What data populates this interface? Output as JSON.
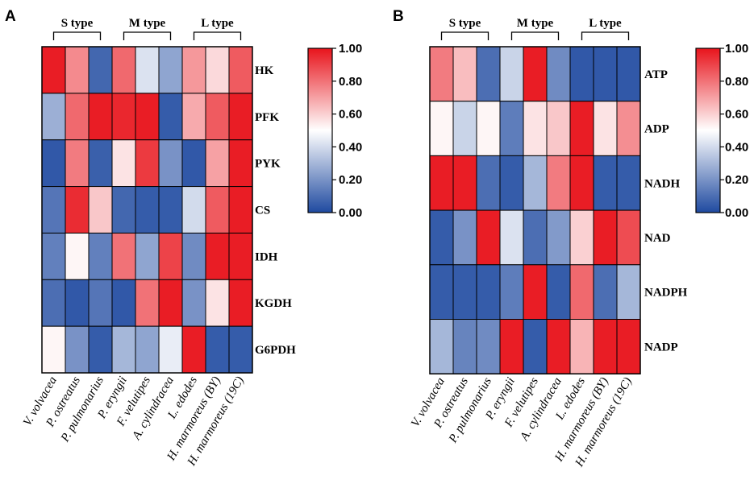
{
  "colorscale": {
    "low": "#1f4aa0",
    "mid": "#ffffff",
    "high": "#e8141c"
  },
  "chart_data": [
    {
      "type": "heatmap",
      "panel": "A",
      "groups": [
        "S type",
        "M type",
        "L type"
      ],
      "columns": [
        "V. volvacea",
        "P. ostreatus",
        "P. pulmonarius",
        "P. eryngii",
        "F. velutipes",
        "A. cylindracea",
        "L. edodes",
        "H. marmoreus (BY)",
        "H. marmoreus (19C)"
      ],
      "rows": [
        "HK",
        "PFK",
        "PYK",
        "CS",
        "IDH",
        "KGDH",
        "G6PDH"
      ],
      "values": [
        [
          0.98,
          0.75,
          0.08,
          0.82,
          0.42,
          0.25,
          0.72,
          0.58,
          0.85
        ],
        [
          0.28,
          0.82,
          0.98,
          0.96,
          0.98,
          0.05,
          0.68,
          0.85,
          0.98
        ],
        [
          0.04,
          0.78,
          0.06,
          0.56,
          0.92,
          0.2,
          0.04,
          0.7,
          0.98
        ],
        [
          0.12,
          0.95,
          0.62,
          0.08,
          0.05,
          0.05,
          0.4,
          0.85,
          0.98
        ],
        [
          0.15,
          0.52,
          0.15,
          0.8,
          0.25,
          0.9,
          0.18,
          0.98,
          0.98
        ],
        [
          0.1,
          0.04,
          0.12,
          0.04,
          0.8,
          0.98,
          0.2,
          0.56,
          0.98
        ],
        [
          0.52,
          0.2,
          0.05,
          0.3,
          0.25,
          0.45,
          0.98,
          0.05,
          0.05
        ]
      ],
      "colorbar": {
        "min": 0.0,
        "max": 1.0,
        "ticks": [
          "1.00",
          "0.80",
          "0.60",
          "0.40",
          "0.20",
          "0.00"
        ]
      }
    },
    {
      "type": "heatmap",
      "panel": "B",
      "groups": [
        "S type",
        "M type",
        "L type"
      ],
      "columns": [
        "V. volvacea",
        "P. ostreatus",
        "P. pulmonarius",
        "P. eryngii",
        "F. velutipes",
        "A. cylindracea",
        "L. edodes",
        "H. marmoreus (BY)",
        "H. marmoreus (19C)"
      ],
      "rows": [
        "ATP",
        "ADP",
        "NADH",
        "NAD",
        "NADPH",
        "NADP"
      ],
      "values": [
        [
          0.78,
          0.64,
          0.1,
          0.38,
          0.98,
          0.18,
          0.04,
          0.04,
          0.04
        ],
        [
          0.52,
          0.38,
          0.52,
          0.14,
          0.56,
          0.62,
          0.98,
          0.56,
          0.74
        ],
        [
          0.98,
          0.98,
          0.1,
          0.05,
          0.3,
          0.78,
          0.98,
          0.05,
          0.05
        ],
        [
          0.05,
          0.2,
          0.98,
          0.42,
          0.1,
          0.22,
          0.6,
          0.98,
          0.88
        ],
        [
          0.05,
          0.05,
          0.05,
          0.14,
          0.98,
          0.05,
          0.82,
          0.1,
          0.3
        ],
        [
          0.3,
          0.16,
          0.18,
          0.98,
          0.05,
          0.98,
          0.66,
          0.98,
          0.98
        ]
      ],
      "colorbar": {
        "min": 0.0,
        "max": 1.0,
        "ticks": [
          "1.00",
          "0.80",
          "0.60",
          "0.40",
          "0.20",
          "0.00"
        ]
      }
    }
  ]
}
